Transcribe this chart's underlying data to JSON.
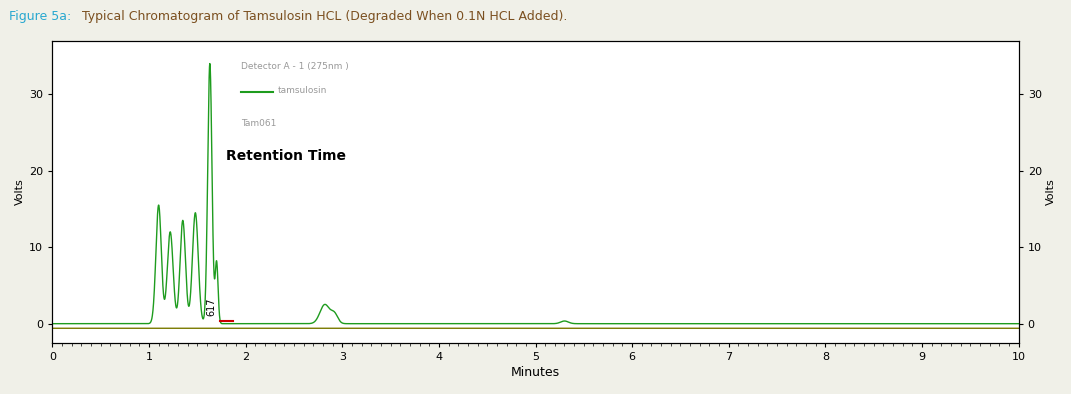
{
  "title_part1": "Figure 5a:",
  "title_part2": " Typical Chromatogram of Tamsulosin HCL (Degraded When 0.1N HCL Added).",
  "title_color1": "#29a8d0",
  "title_color2": "#7b5020",
  "xlabel": "Minutes",
  "ylabel_left": "Volts",
  "ylabel_right": "Volts",
  "xlim": [
    0,
    10
  ],
  "ylim": [
    -2.5,
    37
  ],
  "yticks": [
    0,
    10,
    20,
    30
  ],
  "xticks": [
    0,
    1,
    2,
    3,
    4,
    5,
    6,
    7,
    8,
    9,
    10
  ],
  "legend_line1": "Detector A - 1 (275nm )",
  "legend_line2": "tamsulosin",
  "legend_line3": "Tam061",
  "annotation_label": "Retention Time",
  "peak_label": "617",
  "fig_bg_color": "#f0f0e8",
  "plot_bg_color": "#ffffff",
  "green_color": "#1e9c1e",
  "olive_color": "#7a7a00",
  "red_color": "#cc0000"
}
